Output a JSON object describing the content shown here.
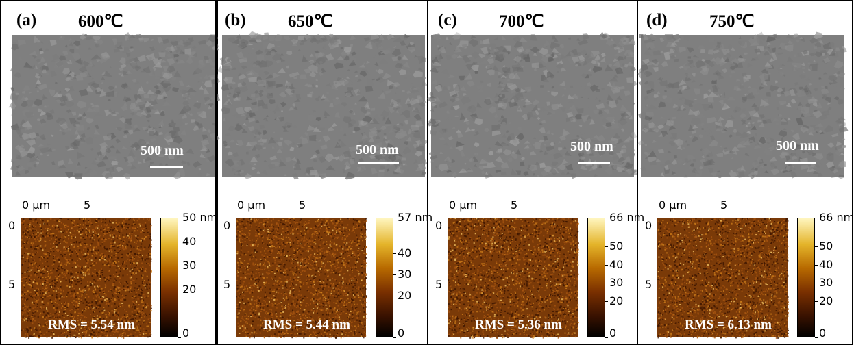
{
  "panels": [
    {
      "label": "(a)",
      "temperature": "600℃",
      "scale_bar": "500 nm",
      "afm_x_ticks": [
        "0 µm",
        "5"
      ],
      "afm_y_ticks": [
        "0",
        "5"
      ],
      "colorbar_ticks": [
        "50 nm",
        "40",
        "30",
        "20",
        "0"
      ],
      "colorbar_max": 50,
      "rms": "RMS = 5.54 nm"
    },
    {
      "label": "(b)",
      "temperature": "650℃",
      "scale_bar": "500 nm",
      "afm_x_ticks": [
        "0 µm",
        "5"
      ],
      "afm_y_ticks": [
        "0",
        "5"
      ],
      "colorbar_ticks": [
        "57 nm",
        "40",
        "30",
        "20",
        "0"
      ],
      "colorbar_max": 57,
      "rms": "RMS = 5.44 nm"
    },
    {
      "label": "(c)",
      "temperature": "700℃",
      "scale_bar": "500 nm",
      "afm_x_ticks": [
        "0 µm",
        "5"
      ],
      "afm_y_ticks": [
        "0",
        "5"
      ],
      "colorbar_ticks": [
        "66 nm",
        "50",
        "40",
        "30",
        "20",
        "0"
      ],
      "colorbar_max": 66,
      "rms": "RMS = 5.36 nm"
    },
    {
      "label": "(d)",
      "temperature": "750℃",
      "scale_bar": "500 nm",
      "afm_x_ticks": [
        "0 µm",
        "5"
      ],
      "afm_y_ticks": [
        "0",
        "5"
      ],
      "colorbar_ticks": [
        "66 nm",
        "50",
        "40",
        "30",
        "20",
        "0"
      ],
      "colorbar_max": 66,
      "rms": "RMS = 6.13 nm"
    }
  ],
  "colors": {
    "sem_gray": "#7f7f7f",
    "afm_brown": "#7a3a08"
  }
}
